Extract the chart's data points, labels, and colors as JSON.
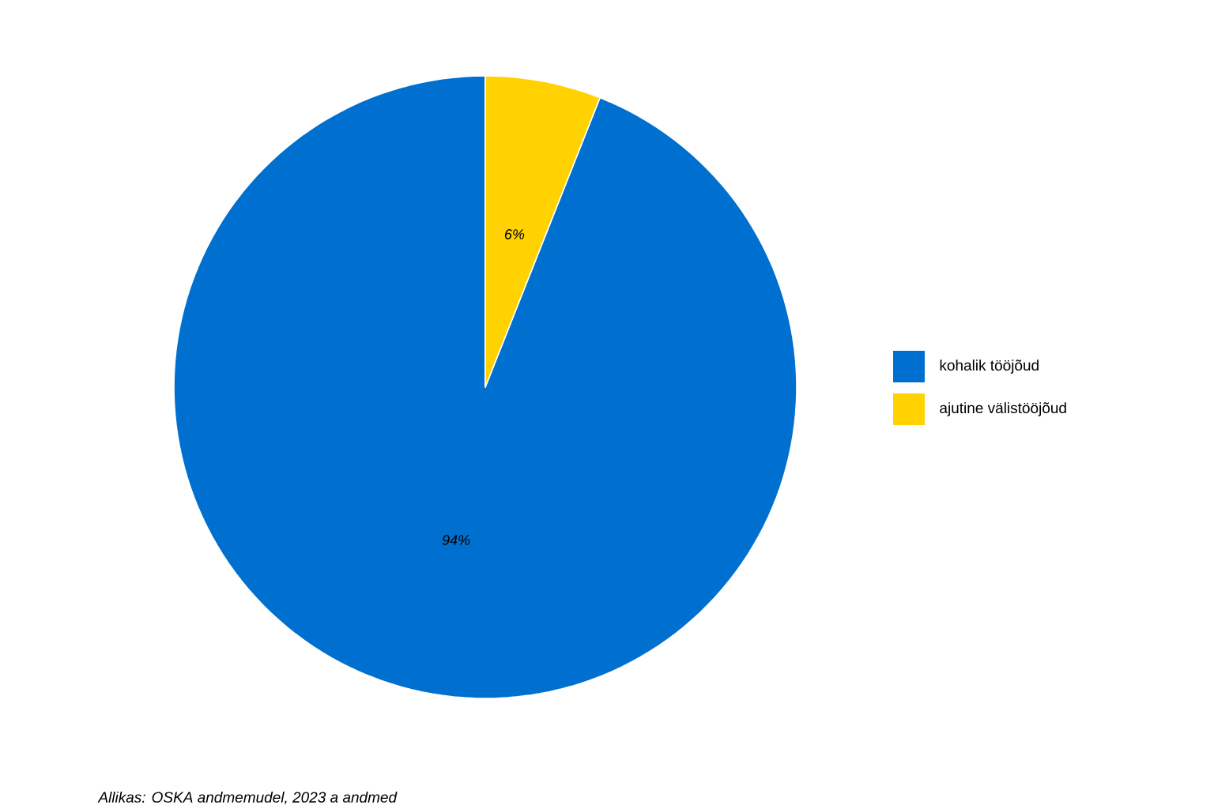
{
  "chart_data": {
    "type": "pie",
    "categories": [
      "kohalik tööjõud",
      "ajutine välistööjõud"
    ],
    "values": [
      94,
      6
    ],
    "colors": [
      "#0070d0",
      "#ffd200"
    ],
    "value_labels": [
      "94%",
      "6%"
    ],
    "legend": "right",
    "annotations": [
      "*Allikas: OSKA andmemudel, 2023 a andmed*"
    ]
  }
}
